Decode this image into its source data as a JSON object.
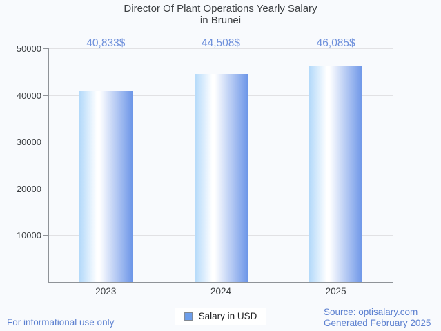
{
  "title": {
    "line1": "Director Of Plant Operations Yearly Salary",
    "line2": "in Brunei"
  },
  "chart_data": {
    "type": "bar",
    "title": "Director Of Plant Operations Yearly Salary in Brunei",
    "categories": [
      "2023",
      "2024",
      "2025"
    ],
    "values": [
      40833,
      44508,
      46085
    ],
    "value_labels": [
      "40,833$",
      "44,508$",
      "46,085$"
    ],
    "series_name": "Salary in USD",
    "xlabel": "",
    "ylabel": "",
    "ylim": [
      0,
      50000
    ],
    "yticks": [
      10000,
      20000,
      30000,
      40000,
      50000
    ],
    "grid": true,
    "legend_position": "bottom"
  },
  "legend": {
    "label": "Salary in USD"
  },
  "footer": {
    "left_note": "For informational use only",
    "source": "Source: optisalary.com",
    "generated": "Generated February 2025"
  },
  "colors": {
    "background": "#f8fafd",
    "text": "#3d4043",
    "grid": "#e1e1e4",
    "axis": "#8f9398",
    "bar_left": "#b3d9fa",
    "bar_mid": "#ffffff",
    "bar_right": "#6d96e8",
    "value_label": "#6d8fdb",
    "footer_text": "#5c80d0",
    "legend_swatch": "#6d9eeb",
    "legend_swatch_border": "#82888f"
  }
}
